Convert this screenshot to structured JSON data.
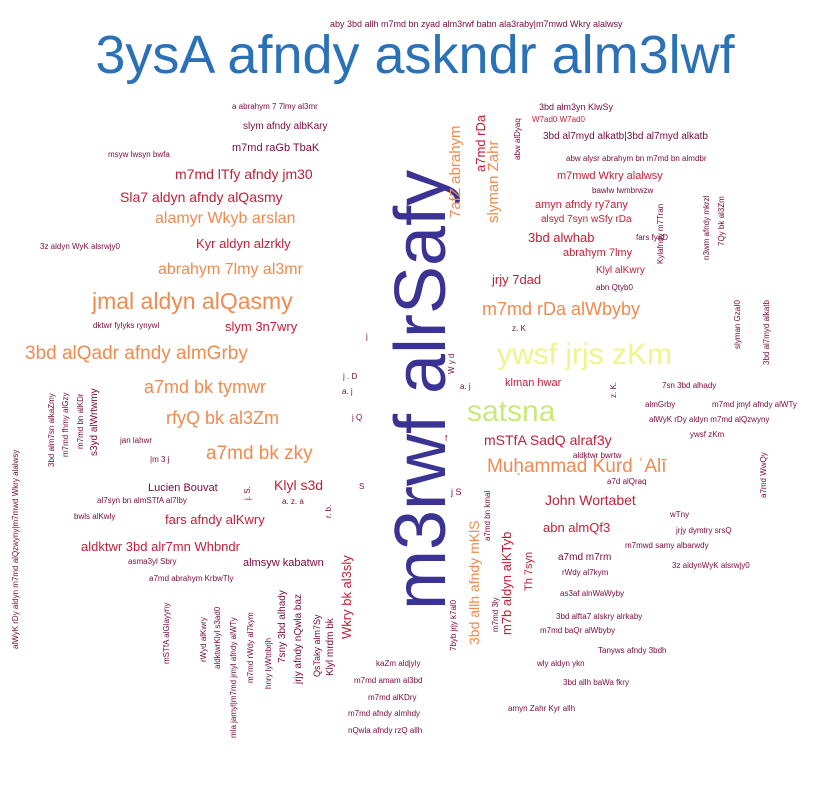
{
  "title": "3ysA afndy askndr alm3lwf",
  "colors": {
    "dark": "#7a0a3b",
    "crimson": "#c0203a",
    "orange": "#f08b4f",
    "indigo": "#3b3394",
    "yellow": "#eef58a",
    "lime": "#cbe97a",
    "title": "#2b71b8"
  },
  "words": [
    {
      "text": "m3rwf alrSafy",
      "color": "indigo",
      "weight": 100
    },
    {
      "text": "ywsf jrjs zKm",
      "color": "yellow",
      "weight": 45
    },
    {
      "text": "satsna",
      "color": "lime",
      "weight": 45
    },
    {
      "text": "jmal aldyn alQasmy",
      "color": "orange",
      "weight": 30
    },
    {
      "text": "3bd alQadr afndy almGrby",
      "color": "orange",
      "weight": 26
    },
    {
      "text": "Muḥammad Kurd ʿAlī",
      "color": "orange",
      "weight": 26
    },
    {
      "text": "m7md rDa alWbyby",
      "color": "orange",
      "weight": 24
    },
    {
      "text": "rfyQ bk al3Zm",
      "color": "orange",
      "weight": 24
    },
    {
      "text": "a7md bk zky",
      "color": "orange",
      "weight": 24
    },
    {
      "text": "a7md bk tymwr",
      "color": "orange",
      "weight": 23
    },
    {
      "text": "7afZ abrahym",
      "color": "orange",
      "weight": 20
    },
    {
      "text": "slyman Zahr",
      "color": "orange",
      "weight": 20
    },
    {
      "text": "alamyr Wkyb arslan",
      "color": "orange",
      "weight": 19
    },
    {
      "text": "abrahym 7lmy al3mr",
      "color": "orange",
      "weight": 18
    },
    {
      "text": "3bd allh afndy mKlS",
      "color": "orange",
      "weight": 18
    },
    {
      "text": "Klyl s3d",
      "color": "crimson",
      "weight": 18
    },
    {
      "text": "mSTfA SadQ alraf3y",
      "color": "crimson",
      "weight": 17
    },
    {
      "text": "a7md rDa",
      "color": "crimson",
      "weight": 17
    },
    {
      "text": "m7b aldyn alKTyb",
      "color": "crimson",
      "weight": 17
    },
    {
      "text": "Sla7 aldyn afndy alQasmy",
      "color": "crimson",
      "weight": 16
    },
    {
      "text": "m7md lTfy afndy jm30",
      "color": "crimson",
      "weight": 16
    },
    {
      "text": "jrjy 7dad",
      "color": "crimson",
      "weight": 16
    },
    {
      "text": "John Wortabet",
      "color": "crimson",
      "weight": 16
    },
    {
      "text": "abn almQf3",
      "color": "crimson",
      "weight": 16
    },
    {
      "text": "Kyr aldyn alzrkly",
      "color": "crimson",
      "weight": 15
    },
    {
      "text": "slym 3n7wry",
      "color": "crimson",
      "weight": 15
    },
    {
      "text": "3bd alwhab",
      "color": "crimson",
      "weight": 15
    },
    {
      "text": "Wkry bk al3sly",
      "color": "crimson",
      "weight": 15
    },
    {
      "text": "aldktwr 3bd alr7mn Whbndr",
      "color": "crimson",
      "weight": 15
    },
    {
      "text": "fars afndy alKwry",
      "color": "crimson",
      "weight": 15
    },
    {
      "text": "abrahym 7lmy",
      "color": "crimson",
      "weight": 13
    },
    {
      "text": "amyn afndy ry7any",
      "color": "crimson",
      "weight": 13
    },
    {
      "text": "m7mwd Wkry alalwsy",
      "color": "crimson",
      "weight": 12
    },
    {
      "text": "klman hwar",
      "color": "crimson",
      "weight": 12
    },
    {
      "text": "Lucien Bouvat",
      "color": "dark",
      "weight": 12
    },
    {
      "text": "alsyd 7syn wSfy rDa",
      "color": "crimson",
      "weight": 12
    },
    {
      "text": "Klyl alKwry",
      "color": "crimson",
      "weight": 12
    },
    {
      "text": "slym afndy albKary",
      "color": "dark",
      "weight": 11
    },
    {
      "text": "m7md raGb TbaK",
      "color": "dark",
      "weight": 11
    },
    {
      "text": "a7md m7rm",
      "color": "dark",
      "weight": 11
    },
    {
      "text": "almsyw kabatwn",
      "color": "dark",
      "weight": 11
    },
    {
      "text": "Th 7syn",
      "color": "crimson",
      "weight": 11
    },
    {
      "text": "aby 3bd allh m7md bn zyad alm3rwf babn ala3raby|m7mwd Wkry alalwsy",
      "color": "dark",
      "weight": 9
    },
    {
      "text": "a abrahym 7 7lmy al3mr",
      "color": "dark",
      "weight": 9
    },
    {
      "text": "msyw lwsyn bwfa",
      "color": "dark",
      "weight": 9
    },
    {
      "text": "3z aldyn WyK alsrwjy0",
      "color": "dark",
      "weight": 9
    },
    {
      "text": "dktwr fylyks rynywl",
      "color": "dark",
      "weight": 9
    },
    {
      "text": "3bd alm3yn KlwSy",
      "color": "dark",
      "weight": 9
    },
    {
      "text": "3bd al7myd alkatb|3bd al7myd alkatb",
      "color": "dark",
      "weight": 9
    },
    {
      "text": "W7ad0 W7ad0",
      "color": "crimson",
      "weight": 9
    },
    {
      "text": "abw alysr abrahym bn m7md bn almdbr",
      "color": "dark",
      "weight": 9
    },
    {
      "text": "bawlw lwmbrwzw",
      "color": "dark",
      "weight": 9
    },
    {
      "text": "fars fyaD",
      "color": "dark",
      "weight": 9
    },
    {
      "text": "abn Qtyb0",
      "color": "dark",
      "weight": 9
    },
    {
      "text": "z. K",
      "color": "dark",
      "weight": 9
    },
    {
      "text": "7sn 3bd alhady",
      "color": "dark",
      "weight": 9
    },
    {
      "text": "almGrby",
      "color": "dark",
      "weight": 9
    },
    {
      "text": "m7md jmyl afndy alWTy",
      "color": "dark",
      "weight": 9
    },
    {
      "text": "alWyK rDy aldyn m7md alQzwyny",
      "color": "dark",
      "weight": 9
    },
    {
      "text": "ywsf zKm",
      "color": "dark",
      "weight": 9
    },
    {
      "text": "aldktwr bwrtw",
      "color": "dark",
      "weight": 9
    },
    {
      "text": "a7d alQraq",
      "color": "dark",
      "weight": 9
    },
    {
      "text": "wTny",
      "color": "dark",
      "weight": 9
    },
    {
      "text": "jrjy dymtry srsQ",
      "color": "dark",
      "weight": 9
    },
    {
      "text": "m7mwd samy albarwdy",
      "color": "dark",
      "weight": 9
    },
    {
      "text": "rWdy al7kym",
      "color": "dark",
      "weight": 9
    },
    {
      "text": "3z aldynWyK alsrwjy0",
      "color": "dark",
      "weight": 9
    },
    {
      "text": "as3af alnWaWyby",
      "color": "dark",
      "weight": 9
    },
    {
      "text": "3bd alfta7 alskry alrkaby",
      "color": "dark",
      "weight": 9
    },
    {
      "text": "m7md baQr alWbyby",
      "color": "dark",
      "weight": 9
    },
    {
      "text": "Tanyws afndy 3bdh",
      "color": "dark",
      "weight": 9
    },
    {
      "text": "wly aldyn ykn",
      "color": "dark",
      "weight": 9
    },
    {
      "text": "3bd allh baWa fkry",
      "color": "dark",
      "weight": 9
    },
    {
      "text": "amyn Zahr Kyr allh",
      "color": "dark",
      "weight": 9
    },
    {
      "text": "kaZm aldjyly",
      "color": "dark",
      "weight": 9
    },
    {
      "text": "m7md amam al3bd",
      "color": "dark",
      "weight": 9
    },
    {
      "text": "m7md alKDry",
      "color": "dark",
      "weight": 9
    },
    {
      "text": "m7md afndy almhdy",
      "color": "dark",
      "weight": 9
    },
    {
      "text": "nQwla afndy rzQ allh",
      "color": "dark",
      "weight": 9
    },
    {
      "text": "jan lahwr",
      "color": "dark",
      "weight": 9
    },
    {
      "text": "|m 3 j",
      "color": "dark",
      "weight": 9
    },
    {
      "text": "al7syn bn almSTfA al7lby",
      "color": "dark",
      "weight": 9
    },
    {
      "text": "bwls alKwly",
      "color": "dark",
      "weight": 9
    },
    {
      "text": "asma3yl Sbry",
      "color": "dark",
      "weight": 9
    },
    {
      "text": "a7md abrahym KrbwTly",
      "color": "dark",
      "weight": 9
    },
    {
      "text": "a. z. a",
      "color": "dark",
      "weight": 9
    },
    {
      "text": "j . D",
      "color": "dark",
      "weight": 9
    },
    {
      "text": "a. j",
      "color": "dark",
      "weight": 9
    },
    {
      "text": "j Q",
      "color": "dark",
      "weight": 9
    },
    {
      "text": "j",
      "color": "dark",
      "weight": 9
    },
    {
      "text": "S",
      "color": "dark",
      "weight": 9
    },
    {
      "text": "f",
      "color": "dark",
      "weight": 9
    },
    {
      "text": "j S",
      "color": "dark",
      "weight": 9
    },
    {
      "text": "a. j",
      "color": "dark",
      "weight": 9
    },
    {
      "text": "W y d",
      "color": "dark",
      "weight": 8
    },
    {
      "text": "z. K.",
      "color": "dark",
      "weight": 8
    },
    {
      "text": "j. S.",
      "color": "dark",
      "weight": 8
    },
    {
      "text": "r. b.",
      "color": "dark",
      "weight": 8
    },
    {
      "text": "abw alDyaq",
      "color": "dark",
      "weight": 8
    },
    {
      "text": "Kylafndy m7Tran",
      "color": "dark",
      "weight": 8
    },
    {
      "text": "n3wm afndy mkrzl",
      "color": "dark",
      "weight": 8
    },
    {
      "text": "7Qy bk al3Zm",
      "color": "dark",
      "weight": 8
    },
    {
      "text": "slyman GzaI0",
      "color": "dark",
      "weight": 8
    },
    {
      "text": "3bd al7myd alkatb",
      "color": "dark",
      "weight": 8
    },
    {
      "text": "a7md WwQy",
      "color": "dark",
      "weight": 8
    },
    {
      "text": "a7md bn kmal",
      "color": "dark",
      "weight": 8
    },
    {
      "text": "m7md 3ly",
      "color": "dark",
      "weight": 8
    },
    {
      "text": "7byb jrjy k7al0",
      "color": "dark",
      "weight": 8
    },
    {
      "text": "3bd alm7sn alkaZmy",
      "color": "dark",
      "weight": 8
    },
    {
      "text": "m7md fhmy alGzy",
      "color": "dark",
      "weight": 8
    },
    {
      "text": "m7md bn alKDr",
      "color": "dark",
      "weight": 8
    },
    {
      "text": "s3yd alWrtwmy",
      "color": "dark",
      "weight": 9
    },
    {
      "text": "alWyK rDy aldyn m7md alQzwyny|m7mwd Wkry alalwsy",
      "color": "dark",
      "weight": 8
    },
    {
      "text": "mSTfA alGlayyny",
      "color": "dark",
      "weight": 8
    },
    {
      "text": "rWyd alKwry",
      "color": "dark",
      "weight": 8
    },
    {
      "text": "aldktwrKlyl s3ad0",
      "color": "dark",
      "weight": 8
    },
    {
      "text": "mla jamyl|m7md jmyl afndy alWTy",
      "color": "dark",
      "weight": 8
    },
    {
      "text": "m7md rWdy al7kym",
      "color": "dark",
      "weight": 8
    },
    {
      "text": "hnry lyWtnbrjh",
      "color": "dark",
      "weight": 8
    },
    {
      "text": "7sny 3bd alhady",
      "color": "dark",
      "weight": 9
    },
    {
      "text": "jrjy afndy nQwla baz",
      "color": "dark",
      "weight": 9
    },
    {
      "text": "QsTaky alm7Sy",
      "color": "dark",
      "weight": 9
    },
    {
      "text": "Klyl mrdm bk",
      "color": "dark",
      "weight": 9
    }
  ]
}
